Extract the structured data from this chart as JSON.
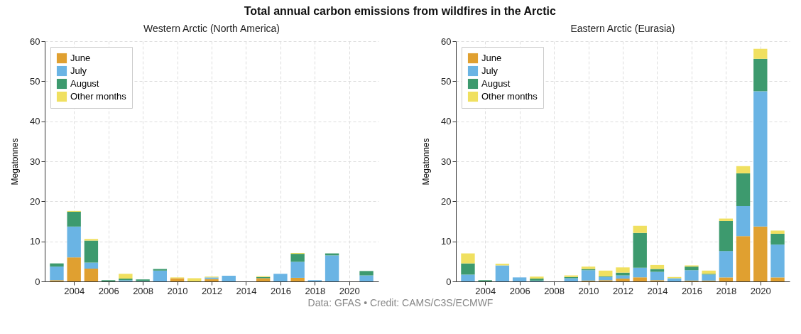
{
  "chart_data": [
    {
      "type": "bar",
      "title": "Total annual carbon emissions from wildfires in the Arctic",
      "subtitle": "Western Arctic (North America)",
      "ylabel": "Megatonnes",
      "stacked": true,
      "grid": true,
      "legend": "top left",
      "x": [
        2003,
        2004,
        2005,
        2006,
        2007,
        2008,
        2009,
        2010,
        2011,
        2012,
        2013,
        2014,
        2015,
        2016,
        2017,
        2018,
        2019,
        2020,
        2021
      ],
      "xlim": [
        2002.3,
        2021.7
      ],
      "xticks": [
        2004,
        2006,
        2008,
        2010,
        2012,
        2014,
        2016,
        2018,
        2020
      ],
      "ylim": [
        0,
        60
      ],
      "yticks": [
        0,
        10,
        20,
        30,
        40,
        50,
        60
      ],
      "series": [
        {
          "name": "June",
          "color": "#e0a030",
          "values": [
            0.3,
            6.0,
            3.2,
            0,
            0,
            0,
            0,
            0.8,
            0,
            0.6,
            0,
            0,
            0.8,
            0,
            0.9,
            0,
            0,
            0,
            0
          ]
        },
        {
          "name": "July",
          "color": "#6ab4e4",
          "values": [
            3.4,
            7.7,
            1.5,
            0,
            0.3,
            0.1,
            2.7,
            0,
            0,
            0.4,
            1.4,
            0,
            0,
            1.9,
            4.0,
            0.3,
            6.5,
            0,
            1.5
          ]
        },
        {
          "name": "August",
          "color": "#3d9a6e",
          "values": [
            0.8,
            3.7,
            5.5,
            0.3,
            0.4,
            0.4,
            0.4,
            0,
            0,
            0,
            0,
            0,
            0.3,
            0,
            2.0,
            null,
            0.5,
            0,
            1.1
          ]
        },
        {
          "name": "Other months",
          "color": "#f0e060",
          "values": [
            0,
            0.2,
            0.4,
            0,
            1.2,
            0,
            0,
            0.2,
            0.8,
            0.2,
            0,
            0,
            0.2,
            0,
            0.2,
            0,
            0,
            0,
            0
          ]
        }
      ]
    },
    {
      "type": "bar",
      "subtitle": "Eastern Arctic (Eurasia)",
      "ylabel": "Megatonnes",
      "stacked": true,
      "grid": true,
      "legend": "top left",
      "x": [
        2003,
        2004,
        2005,
        2006,
        2007,
        2008,
        2009,
        2010,
        2011,
        2012,
        2013,
        2014,
        2015,
        2016,
        2017,
        2018,
        2019,
        2020,
        2021
      ],
      "xlim": [
        2002.3,
        2021.7
      ],
      "xticks": [
        2004,
        2006,
        2008,
        2010,
        2012,
        2014,
        2016,
        2018,
        2020
      ],
      "ylim": [
        0,
        60
      ],
      "yticks": [
        0,
        10,
        20,
        30,
        40,
        50,
        60
      ],
      "annotations": [
        "Data: GFAS • Credit: CAMS/C3S/ECMWF"
      ],
      "series": [
        {
          "name": "June",
          "color": "#e0a030",
          "values": [
            0,
            0,
            0,
            0,
            0,
            0,
            0,
            0.2,
            0.3,
            0.7,
            1.0,
            0.3,
            0,
            0.2,
            0.2,
            1.0,
            11.3,
            13.7,
            1.0
          ]
        },
        {
          "name": "July",
          "color": "#6ab4e4",
          "values": [
            1.7,
            0,
            4.0,
            1.0,
            0.2,
            0,
            0.8,
            2.6,
            0.8,
            0.8,
            2.4,
            2.1,
            0.8,
            2.6,
            1.5,
            6.6,
            7.5,
            33.8,
            8.2
          ]
        },
        {
          "name": "August",
          "color": "#3d9a6e",
          "values": [
            2.8,
            0.3,
            0,
            0,
            0.5,
            0,
            0.3,
            0.3,
            0.2,
            0.7,
            8.7,
            0.7,
            0,
            0.9,
            0.2,
            7.5,
            8.2,
            8.1,
            2.7
          ]
        },
        {
          "name": "Other months",
          "color": "#f0e060",
          "values": [
            2.5,
            0,
            0.4,
            0,
            0.5,
            0,
            0.4,
            0.6,
            1.4,
            1.3,
            1.8,
            1.0,
            0.3,
            0.3,
            0.8,
            0.6,
            1.8,
            2.5,
            0.8
          ]
        }
      ]
    }
  ]
}
